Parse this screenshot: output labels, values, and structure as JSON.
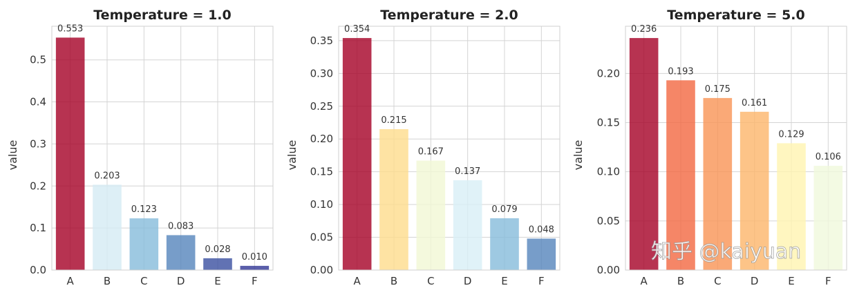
{
  "chart_data": [
    {
      "type": "bar",
      "title": "Temperature = 1.0",
      "xlabel": "",
      "ylabel": "value",
      "categories": [
        "A",
        "B",
        "C",
        "D",
        "E",
        "F"
      ],
      "values": [
        0.553,
        0.203,
        0.123,
        0.083,
        0.028,
        0.01
      ],
      "data_labels": [
        "0.553",
        "0.203",
        "0.123",
        "0.083",
        "0.028",
        "0.010"
      ],
      "colors": [
        "#a50026",
        "#d4ebf4",
        "#86bcdb",
        "#5584bb",
        "#3a4fa0",
        "#313695"
      ],
      "ylim": [
        0,
        0.58
      ],
      "yticks": [
        0.0,
        0.1,
        0.2,
        0.3,
        0.4,
        0.5
      ],
      "ytick_labels": [
        "0.0",
        "0.1",
        "0.2",
        "0.3",
        "0.4",
        "0.5"
      ],
      "grid": true
    },
    {
      "type": "bar",
      "title": "Temperature = 2.0",
      "xlabel": "",
      "ylabel": "value",
      "categories": [
        "A",
        "B",
        "C",
        "D",
        "E",
        "F"
      ],
      "values": [
        0.354,
        0.215,
        0.167,
        0.137,
        0.079,
        0.048
      ],
      "data_labels": [
        "0.354",
        "0.215",
        "0.167",
        "0.137",
        "0.079",
        "0.048"
      ],
      "colors": [
        "#a50026",
        "#fedc8c",
        "#f1f8d4",
        "#d8eff6",
        "#86bcdb",
        "#5584bb"
      ],
      "ylim": [
        0,
        0.372
      ],
      "yticks": [
        0.0,
        0.05,
        0.1,
        0.15,
        0.2,
        0.25,
        0.3,
        0.35
      ],
      "ytick_labels": [
        "0.00",
        "0.05",
        "0.10",
        "0.15",
        "0.20",
        "0.25",
        "0.30",
        "0.35"
      ],
      "grid": true
    },
    {
      "type": "bar",
      "title": "Temperature = 5.0",
      "xlabel": "",
      "ylabel": "value",
      "categories": [
        "A",
        "B",
        "C",
        "D",
        "E",
        "F"
      ],
      "values": [
        0.236,
        0.193,
        0.175,
        0.161,
        0.129,
        0.106
      ],
      "data_labels": [
        "0.236",
        "0.193",
        "0.175",
        "0.161",
        "0.129",
        "0.106"
      ],
      "colors": [
        "#a50026",
        "#f26841",
        "#f99355",
        "#fdb56a",
        "#fff4b0",
        "#f0f9dc"
      ],
      "ylim": [
        0,
        0.248
      ],
      "yticks": [
        0.0,
        0.05,
        0.1,
        0.15,
        0.2
      ],
      "ytick_labels": [
        "0.00",
        "0.05",
        "0.10",
        "0.15",
        "0.20"
      ],
      "grid": true
    }
  ],
  "watermark": "知乎 @kaiyuan"
}
